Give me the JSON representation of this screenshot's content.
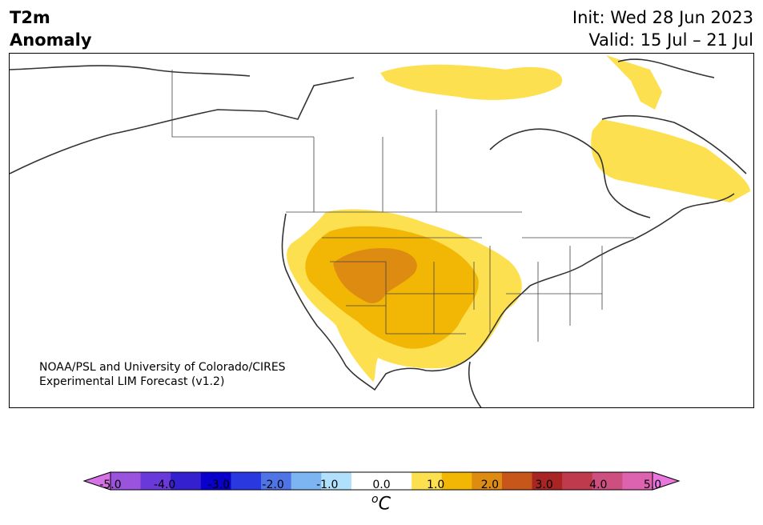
{
  "header": {
    "title_line1": "T2m",
    "title_line2": "Anomaly",
    "init": "Init: Wed 28 Jun 2023",
    "valid": "Valid: 15 Jul – 21 Jul"
  },
  "credit": {
    "line1": "NOAA/PSL and University of Colorado/CIRES",
    "line2": "Experimental LIM Forecast (v1.2)"
  },
  "colorbar": {
    "unit_base": "C",
    "unit_sup": "o",
    "ticks": [
      "-5.0",
      "-4.0",
      "-3.0",
      "-2.0",
      "-1.0",
      "0.0",
      "1.0",
      "2.0",
      "3.0",
      "4.0",
      "5.0"
    ],
    "colors": [
      "#d672e6",
      "#9a53dc",
      "#6a39d9",
      "#3520cf",
      "#0a00cc",
      "#2a38e0",
      "#4f74e6",
      "#7cb5f2",
      "#b0e0fb",
      "#ffffff",
      "#ffffff",
      "#fde04f",
      "#f2b705",
      "#de8b11",
      "#c6561a",
      "#a82523",
      "#c03a4d",
      "#cd4f7f",
      "#dd63b0",
      "#e776dd"
    ]
  },
  "anomaly_colors": {
    "level1": "#fde04f",
    "level2": "#f2b705",
    "level3": "#de8b11"
  }
}
